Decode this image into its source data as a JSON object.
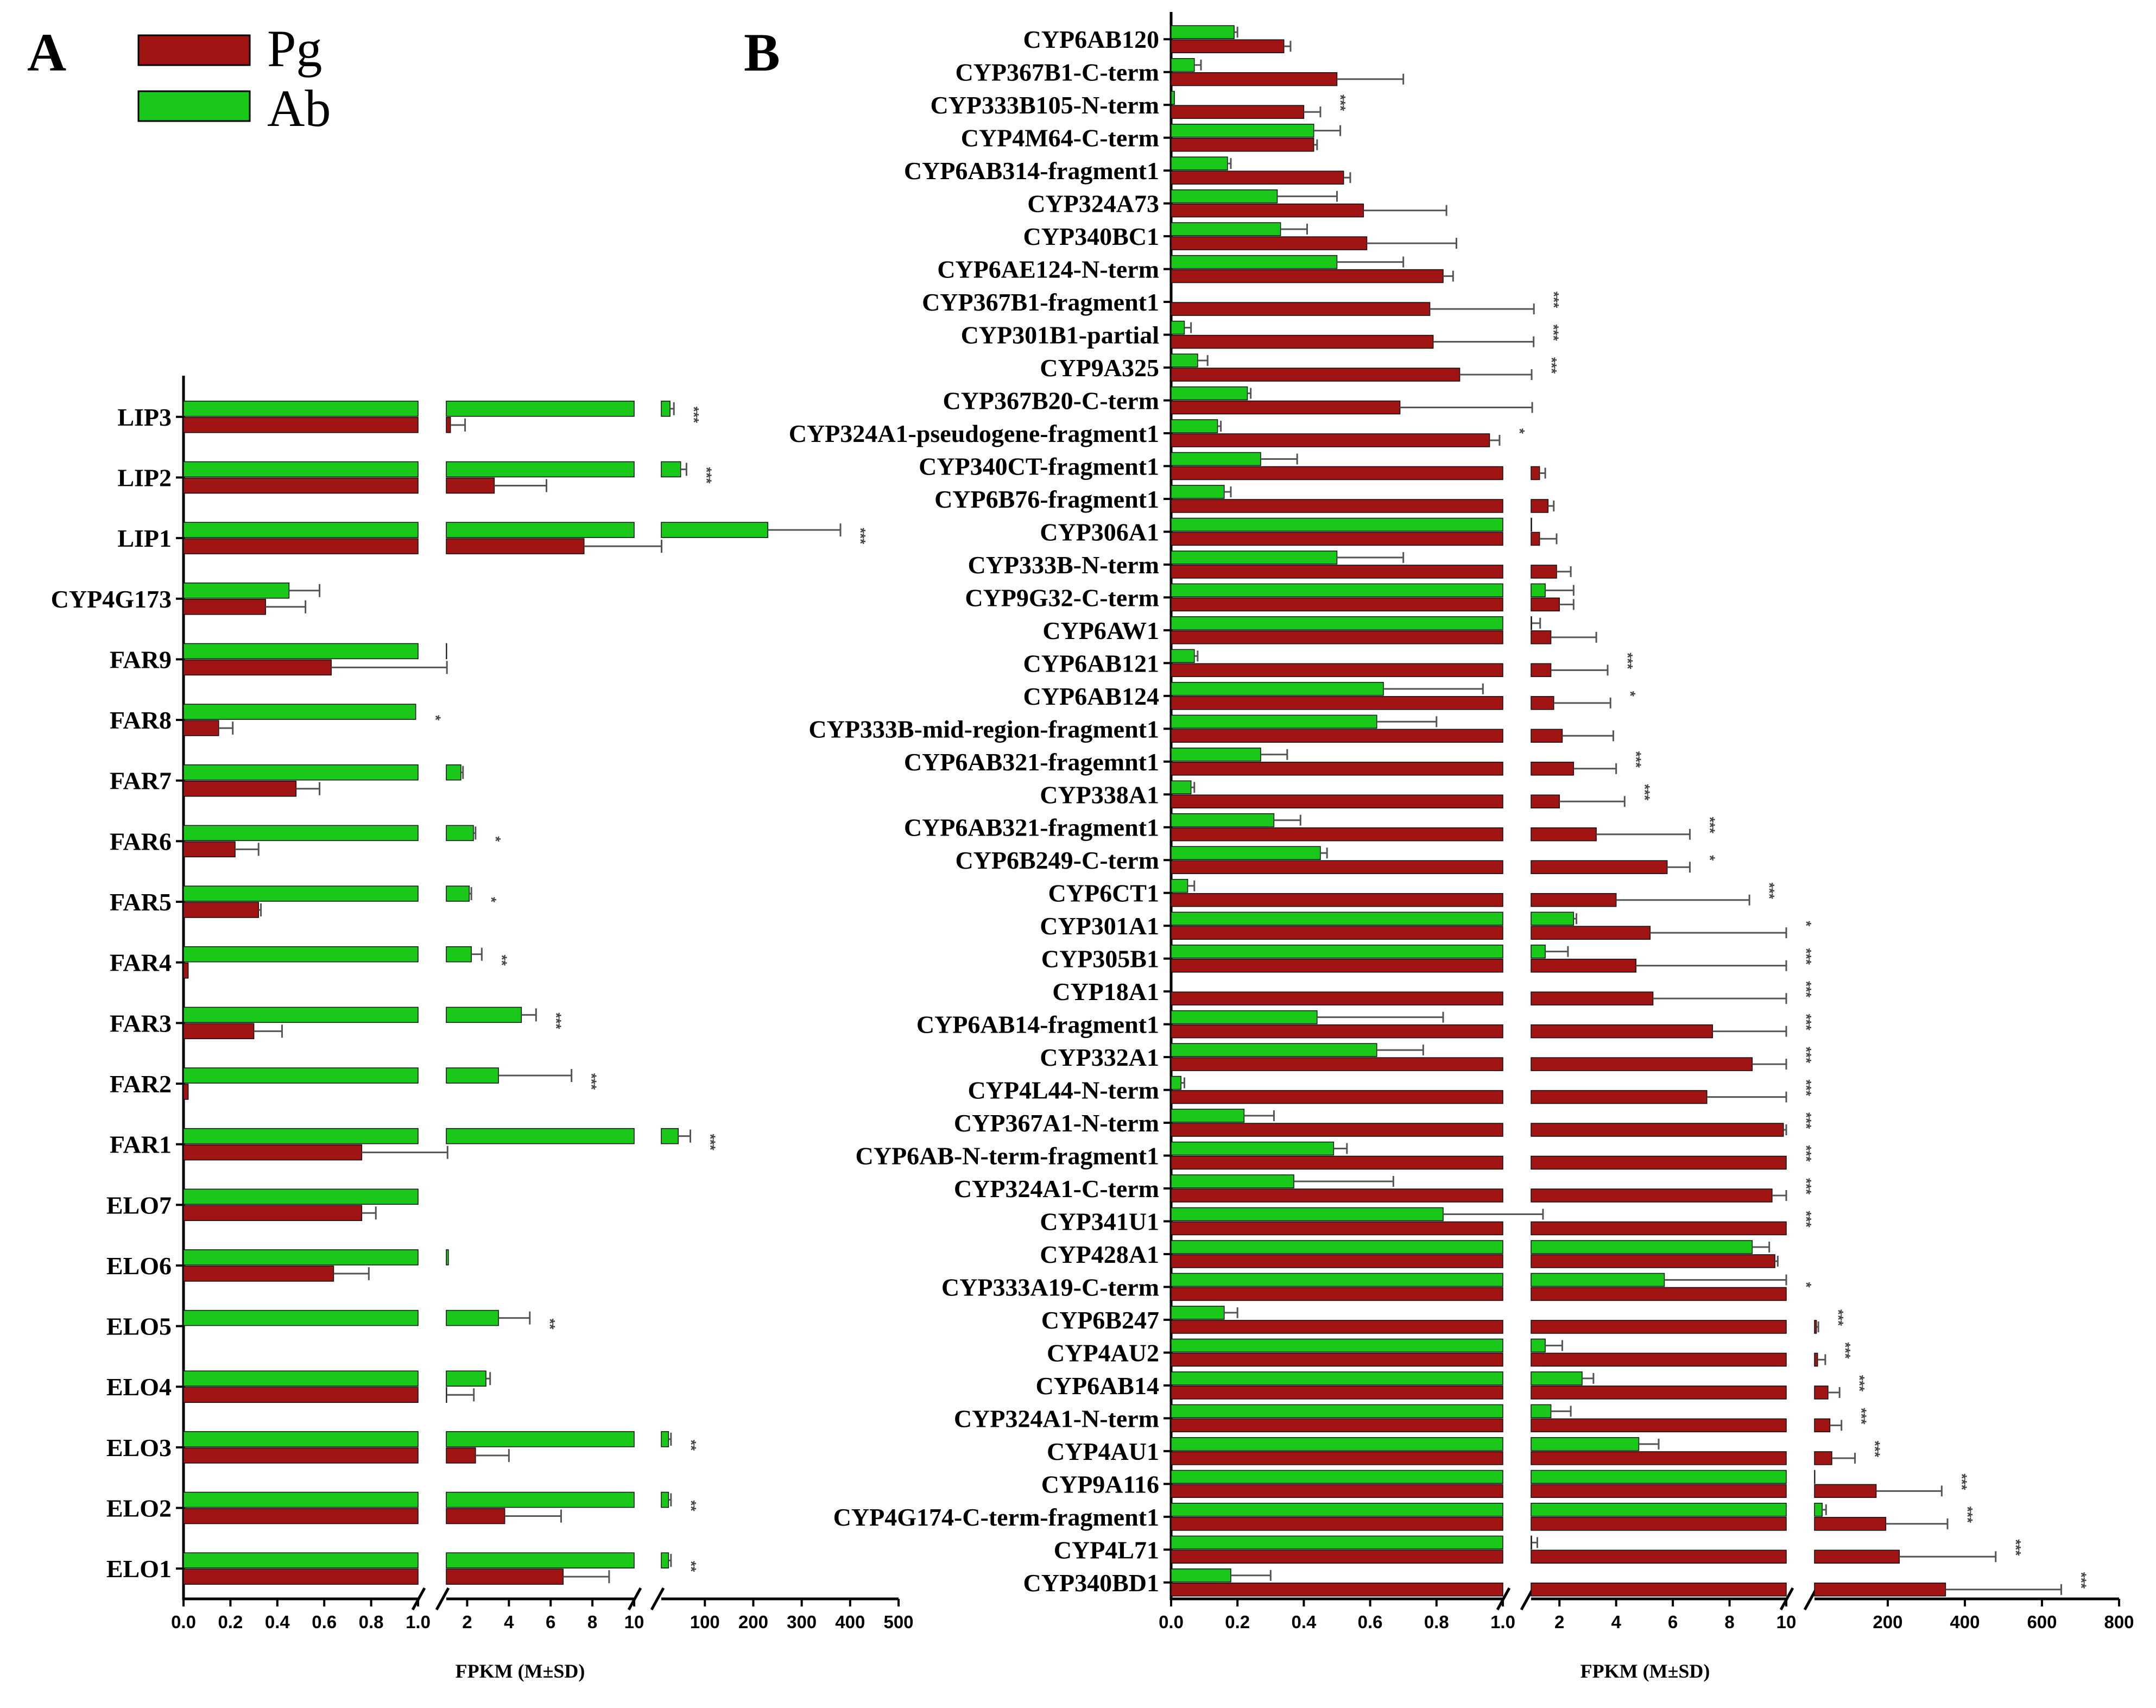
{
  "panel_a": {
    "letter": "A"
  },
  "panel_b": {
    "letter": "B"
  },
  "legend": [
    {
      "name": "Pg",
      "color": "#a01414"
    },
    {
      "name": "Ab",
      "color": "#19c819"
    }
  ],
  "colors": {
    "pg": "#a01414",
    "ab": "#19c819",
    "axis": "#000000",
    "error": "#555555"
  },
  "chart_data": [
    {
      "panel": "A",
      "type": "bar",
      "orientation": "horizontal",
      "xlabel": "FPKM (M±SD)",
      "axis_segments": [
        {
          "range": [
            0,
            1
          ],
          "ticks": [
            "0.0",
            "0.2",
            "0.4",
            "0.6",
            "0.8",
            "1.0"
          ]
        },
        {
          "range": [
            1,
            10
          ],
          "ticks": [
            "2",
            "4",
            "6",
            "8",
            "10"
          ]
        },
        {
          "range": [
            10,
            500
          ],
          "ticks": [
            "100",
            "200",
            "300",
            "400",
            "500"
          ]
        }
      ],
      "categories": [
        "LIP3",
        "LIP2",
        "LIP1",
        "CYP4G173",
        "FAR9",
        "FAR8",
        "FAR7",
        "FAR6",
        "FAR5",
        "FAR4",
        "FAR3",
        "FAR2",
        "FAR1",
        "ELO7",
        "ELO6",
        "ELO5",
        "ELO4",
        "ELO3",
        "ELO2",
        "ELO1"
      ],
      "series": [
        {
          "name": "Ab",
          "values": [
            28,
            50,
            230,
            0.45,
            1.02,
            0.99,
            1.7,
            2.3,
            2.1,
            2.2,
            4.6,
            3.5,
            45,
            1.01,
            1.1,
            3.5,
            2.9,
            25,
            25,
            25
          ],
          "sd": [
            8,
            12,
            150,
            0.13,
            0,
            0,
            0.1,
            0.1,
            0.1,
            0.5,
            0.7,
            3.5,
            25,
            0,
            0,
            1.5,
            0.2,
            5,
            5,
            5
          ]
        },
        {
          "name": "Pg",
          "values": [
            1.2,
            3.3,
            7.6,
            0.35,
            0.63,
            0.15,
            0.48,
            0.22,
            0.32,
            0.02,
            0.3,
            0.02,
            0.76,
            0.76,
            0.64,
            0.0,
            1.02,
            2.4,
            3.8,
            6.6
          ],
          "sd": [
            0.7,
            2.5,
            3.0,
            0.17,
            0.4,
            0.06,
            0.1,
            0.1,
            0.01,
            0,
            0.12,
            0,
            0.3,
            0.06,
            0.15,
            0,
            1.3,
            1.6,
            2.7,
            2.2
          ]
        }
      ],
      "significance": [
        "***",
        "***",
        "***",
        "",
        "",
        "*",
        "",
        "*",
        "*",
        "**",
        "***",
        "***",
        "***",
        "",
        "",
        "**",
        "",
        "**",
        "**",
        "**"
      ]
    },
    {
      "panel": "B",
      "type": "bar",
      "orientation": "horizontal",
      "xlabel": "FPKM (M±SD)",
      "axis_segments": [
        {
          "range": [
            0,
            1
          ],
          "ticks": [
            "0.0",
            "0.2",
            "0.4",
            "0.6",
            "0.8",
            "1.0"
          ]
        },
        {
          "range": [
            1,
            10
          ],
          "ticks": [
            "2",
            "4",
            "6",
            "8",
            "10"
          ]
        },
        {
          "range": [
            10,
            800
          ],
          "ticks": [
            "200",
            "400",
            "600",
            "800"
          ]
        }
      ],
      "categories": [
        "CYP6AB120",
        "CYP367B1-C-term",
        "CYP333B105-N-term",
        "CYP4M64-C-term",
        "CYP6AB314-fragment1",
        "CYP324A73",
        "CYP340BC1",
        "CYP6AE124-N-term",
        "CYP367B1-fragment1",
        "CYP301B1-partial",
        "CYP9A325",
        "CYP367B20-C-term",
        "CYP324A1-pseudogene-fragment1",
        "CYP340CT-fragment1",
        "CYP6B76-fragment1",
        "CYP306A1",
        "CYP333B-N-term",
        "CYP9G32-C-term",
        "CYP6AW1",
        "CYP6AB121",
        "CYP6AB124",
        "CYP333B-mid-region-fragment1",
        "CYP6AB321-fragemnt1",
        "CYP338A1",
        "CYP6AB321-fragment1",
        "CYP6B249-C-term",
        "CYP6CT1",
        "CYP301A1",
        "CYP305B1",
        "CYP18A1",
        "CYP6AB14-fragment1",
        "CYP332A1",
        "CYP4L44-N-term",
        "CYP367A1-N-term",
        "CYP6AB-N-term-fragment1",
        "CYP324A1-C-term",
        "CYP341U1",
        "CYP428A1",
        "CYP333A19-C-term",
        "CYP6B247",
        "CYP4AU2",
        "CYP6AB14",
        "CYP324A1-N-term",
        "CYP4AU1",
        "CYP9A116",
        "CYP4G174-C-term-fragment1",
        "CYP4L71",
        "CYP340BD1"
      ],
      "series": [
        {
          "name": "Ab",
          "values": [
            0.19,
            0.07,
            0.01,
            0.43,
            0.17,
            0.32,
            0.33,
            0.5,
            0.0,
            0.04,
            0.08,
            0.23,
            0.14,
            0.27,
            0.16,
            1.02,
            0.5,
            1.5,
            1.02,
            0.07,
            0.64,
            0.62,
            0.27,
            0.06,
            0.31,
            0.45,
            0.05,
            2.5,
            1.5,
            0.0,
            0.44,
            0.62,
            0.03,
            0.22,
            0.49,
            0.37,
            0.82,
            8.8,
            5.7,
            0.16,
            1.5,
            2.8,
            1.7,
            4.8,
            11,
            30,
            1.02,
            0.18
          ],
          "sd": [
            0.01,
            0.02,
            0,
            0.08,
            0.01,
            0.18,
            0.08,
            0.2,
            0,
            0.02,
            0.03,
            0.01,
            0.01,
            0.11,
            0.02,
            0,
            0.2,
            1.0,
            0.3,
            0.01,
            0.3,
            0.18,
            0.08,
            0.01,
            0.08,
            0.02,
            0.02,
            0.1,
            0.8,
            0,
            0.38,
            0.14,
            0.01,
            0.09,
            0.04,
            0.3,
            0.6,
            0.6,
            4.3,
            0.04,
            0.6,
            0.4,
            0.7,
            0.7,
            0,
            10,
            0.2,
            0.12
          ]
        },
        {
          "name": "Pg",
          "values": [
            0.34,
            0.5,
            0.4,
            0.43,
            0.52,
            0.58,
            0.59,
            0.82,
            0.78,
            0.79,
            0.87,
            0.69,
            0.96,
            1.3,
            1.6,
            1.3,
            1.9,
            2.0,
            1.7,
            1.7,
            1.8,
            2.1,
            2.5,
            2.0,
            3.3,
            5.8,
            4.0,
            5.2,
            4.7,
            5.3,
            7.4,
            8.8,
            7.2,
            9.9,
            10,
            9.5,
            10,
            9.6,
            10,
            15,
            18,
            45,
            50,
            55,
            170,
            195,
            230,
            350
          ],
          "sd": [
            0.02,
            0.2,
            0.05,
            0.01,
            0.02,
            0.25,
            0.27,
            0.03,
            0.32,
            0.3,
            0.15,
            0.35,
            0.03,
            0.2,
            0.2,
            0.6,
            0.5,
            0.5,
            1.6,
            2.0,
            2.0,
            1.8,
            1.5,
            2.3,
            3.3,
            0.8,
            4.7,
            4.8,
            5.3,
            4.7,
            2.6,
            1.2,
            2.8,
            0.1,
            0,
            0.5,
            0,
            0.1,
            0,
            5,
            20,
            30,
            30,
            60,
            170,
            160,
            250,
            300
          ]
        }
      ],
      "significance": [
        "",
        "",
        "***",
        "",
        "",
        "",
        "",
        "",
        "***",
        "***",
        "***",
        "",
        "*",
        "",
        "",
        "",
        "",
        "",
        "",
        "***",
        "*",
        "",
        "***",
        "***",
        "***",
        "*",
        "***",
        "*",
        "***",
        "***",
        "***",
        "***",
        "***",
        "***",
        "***",
        "***",
        "***",
        "",
        "*",
        "***",
        "***",
        "***",
        "***",
        "***",
        "***",
        "***",
        "***",
        "***"
      ]
    }
  ]
}
